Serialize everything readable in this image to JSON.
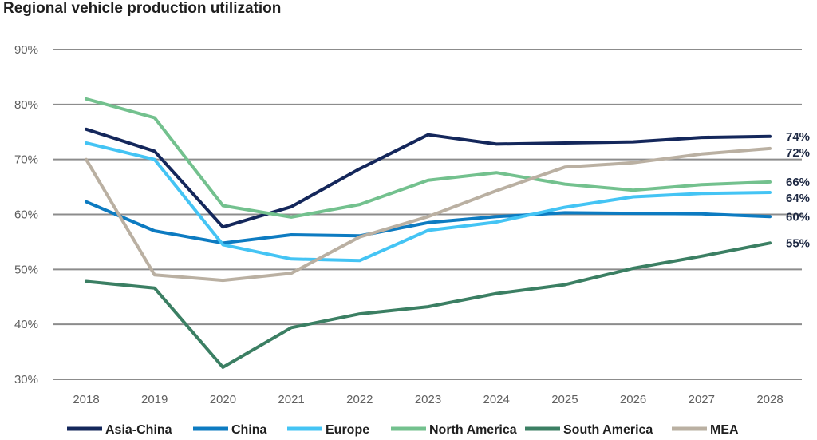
{
  "chart_data": {
    "type": "line",
    "title": "Regional vehicle production utilization",
    "xlabel": "",
    "ylabel": "",
    "x": [
      "2018",
      "2019",
      "2020",
      "2021",
      "2022",
      "2023",
      "2024",
      "2025",
      "2026",
      "2027",
      "2028"
    ],
    "ylim": [
      30,
      90
    ],
    "yticks": [
      30,
      40,
      50,
      60,
      70,
      80,
      90
    ],
    "ytick_labels": [
      "30%",
      "40%",
      "50%",
      "60%",
      "70%",
      "80%",
      "90%"
    ],
    "grid": true,
    "legend_position": "bottom",
    "series": [
      {
        "name": "Asia-China",
        "color": "#14275b",
        "values": [
          75.5,
          71.5,
          57.7,
          61.4,
          68.3,
          74.5,
          72.8,
          73.0,
          73.2,
          74.0,
          74.2
        ],
        "end_label": "74%"
      },
      {
        "name": "China",
        "color": "#0d7bc1",
        "values": [
          62.3,
          57.0,
          54.8,
          56.3,
          56.1,
          58.5,
          59.6,
          60.3,
          60.2,
          60.1,
          59.6
        ],
        "end_label": "60%"
      },
      {
        "name": "Europe",
        "color": "#44c4f4",
        "values": [
          73.0,
          70.0,
          54.5,
          51.9,
          51.6,
          57.1,
          58.6,
          61.3,
          63.2,
          63.8,
          64.0
        ],
        "end_label": "64%"
      },
      {
        "name": "North America",
        "color": "#73c18e",
        "values": [
          81.0,
          77.6,
          61.6,
          59.5,
          61.8,
          66.2,
          67.6,
          65.5,
          64.4,
          65.4,
          65.9
        ],
        "end_label": "66%"
      },
      {
        "name": "South America",
        "color": "#3b7f63",
        "values": [
          47.8,
          46.6,
          32.2,
          39.4,
          41.9,
          43.2,
          45.6,
          47.2,
          50.2,
          52.4,
          54.8
        ],
        "end_label": "55%"
      },
      {
        "name": "MEA",
        "color": "#bab0a2",
        "values": [
          70.0,
          49.0,
          48.0,
          49.3,
          55.9,
          59.6,
          64.3,
          68.6,
          69.4,
          71.0,
          72.0
        ],
        "end_label": "72%"
      }
    ]
  }
}
